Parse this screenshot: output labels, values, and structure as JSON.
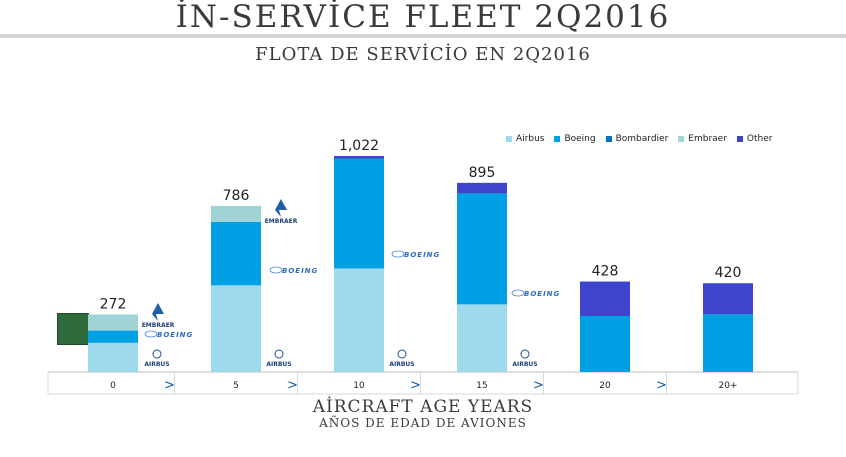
{
  "title": "İN-SERVİCE FLEET 2Q2016",
  "subtitle": "FLOTA DE SERVİCİO EN 2Q2016",
  "x_axis_title": "AİRCRAFT AGE YEARS",
  "x_axis_subtitle": "AÑOS DE EDAD DE AVIONES",
  "colors": {
    "Airbus": "#9ed9ec",
    "Boeing": "#00a0e4",
    "Bombardier": "#0073c6",
    "Embraer": "#9fd3d6",
    "Other": "#3e44cc"
  },
  "logos": {
    "embraer": "EMBRAER",
    "boeing": "BOEING",
    "airbus": "AIRBUS"
  },
  "chart_data": {
    "type": "bar",
    "stacked": true,
    "categories": [
      "0",
      "5",
      "10",
      "15",
      "20",
      "20+"
    ],
    "separators": [
      ">",
      ">",
      ">",
      ">",
      ">"
    ],
    "totals": [
      "272",
      "786",
      "1,022",
      "895",
      "428",
      "420"
    ],
    "series": [
      {
        "name": "Airbus",
        "values": [
          138,
          410,
          490,
          320,
          0,
          0
        ]
      },
      {
        "name": "Boeing",
        "values": [
          58,
          300,
          520,
          525,
          265,
          273
        ]
      },
      {
        "name": "Bombardier",
        "values": [
          0,
          0,
          0,
          0,
          0,
          0
        ]
      },
      {
        "name": "Embraer",
        "values": [
          76,
          76,
          0,
          0,
          0,
          0
        ]
      },
      {
        "name": "Other",
        "values": [
          0,
          0,
          12,
          50,
          163,
          147
        ]
      }
    ],
    "ylim": [
      0,
      1022
    ],
    "legend_position": "top-right"
  }
}
